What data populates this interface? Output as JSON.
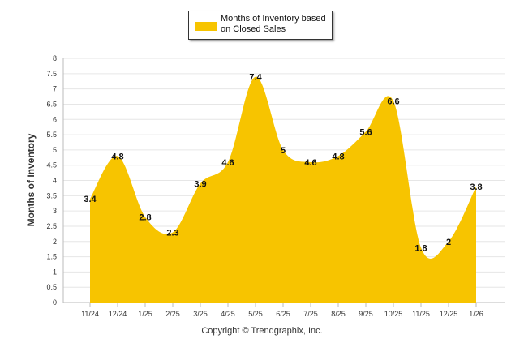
{
  "chart_data": {
    "type": "area",
    "legend": "Months of Inventory based on Closed Sales",
    "legend_position": "top-center",
    "ylabel": "Months of Inventory",
    "xlabel": "",
    "ylim": [
      0,
      8
    ],
    "ytick_step": 0.5,
    "ytick_labels": [
      "0",
      "0.5",
      "1",
      "1.5",
      "2",
      "2.5",
      "3",
      "3.5",
      "4",
      "4.5",
      "5",
      "5.5",
      "6",
      "6.5",
      "7",
      "7.5",
      "8"
    ],
    "grid": true,
    "categories": [
      "11/24",
      "12/24",
      "1/25",
      "2/25",
      "3/25",
      "4/25",
      "5/25",
      "6/25",
      "7/25",
      "8/25",
      "9/25",
      "10/25",
      "11/25",
      "12/25",
      "1/26"
    ],
    "series": [
      {
        "name": "Months of Inventory based on Closed Sales",
        "color": "#f7c400",
        "values": [
          3.4,
          4.8,
          2.8,
          2.3,
          3.9,
          4.6,
          7.4,
          5,
          4.6,
          4.8,
          5.6,
          6.6,
          1.8,
          2,
          3.8
        ]
      }
    ]
  },
  "copyright": "Copyright © Trendgraphix, Inc."
}
